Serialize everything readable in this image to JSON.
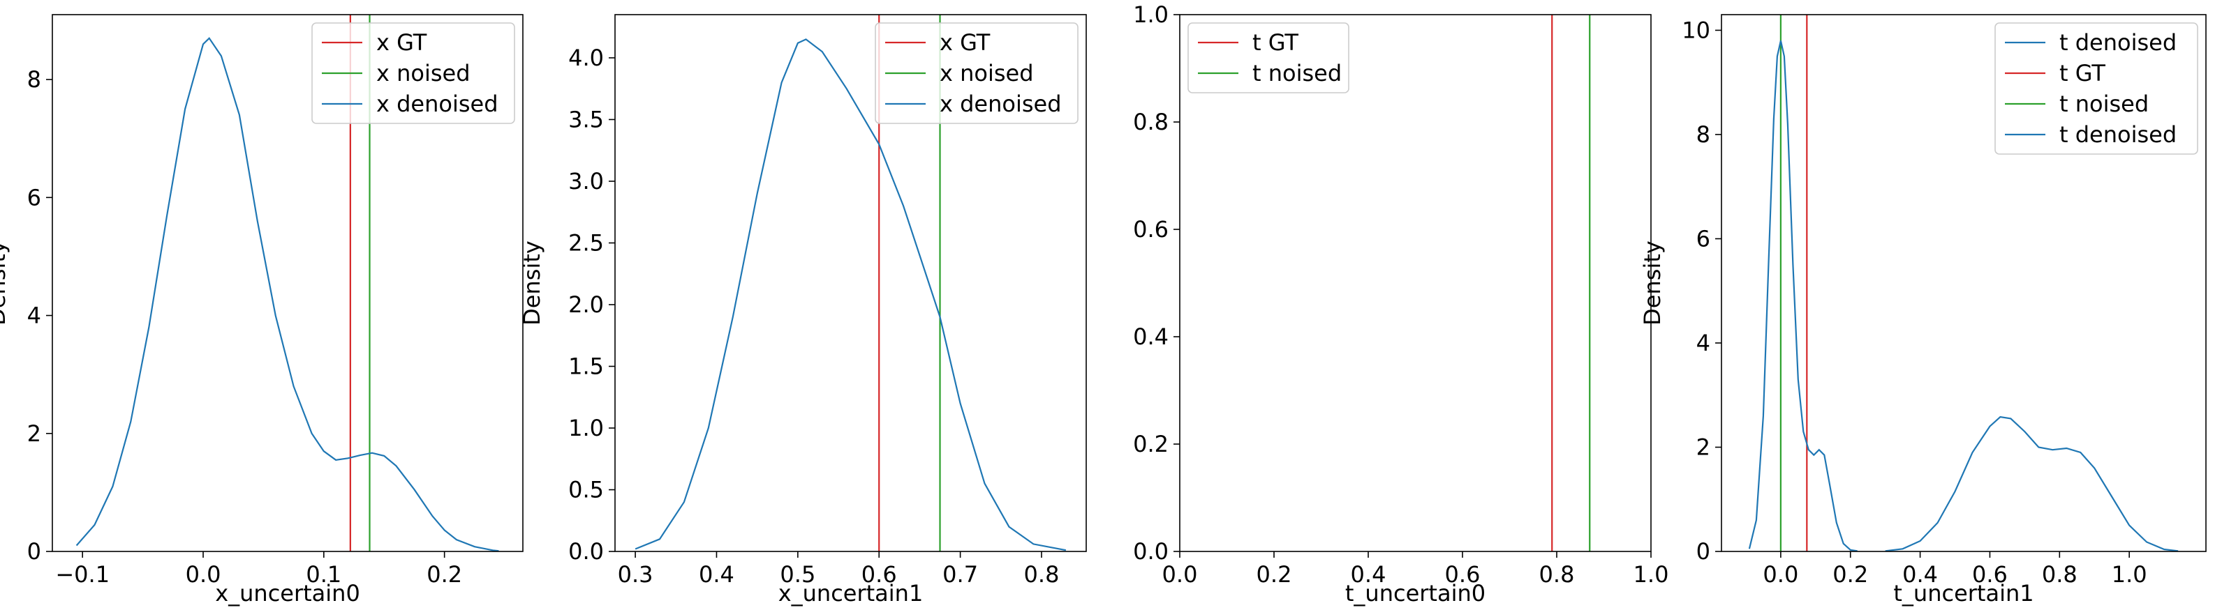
{
  "chart_data": [
    {
      "type": "line",
      "xlabel": "x_uncertain0",
      "ylabel": "Density",
      "xlim": [
        -0.125,
        0.265
      ],
      "ylim": [
        0,
        9.1
      ],
      "xticks": [
        -0.1,
        0.0,
        0.1,
        0.2
      ],
      "xtick_labels": [
        "−0.1",
        "0.0",
        "0.1",
        "0.2"
      ],
      "yticks": [
        0,
        2,
        4,
        6,
        8
      ],
      "ytick_labels": [
        "0",
        "2",
        "4",
        "6",
        "8"
      ],
      "legend_position": "upper right",
      "vlines": [
        {
          "name": "x GT",
          "x": 0.122,
          "color": "#d62728"
        },
        {
          "name": "x noised",
          "x": 0.138,
          "color": "#2ca02c"
        }
      ],
      "series": [
        {
          "name": "x denoised",
          "color": "#1f77b4",
          "x": [
            -0.105,
            -0.09,
            -0.075,
            -0.06,
            -0.045,
            -0.03,
            -0.015,
            0.0,
            0.005,
            0.015,
            0.03,
            0.045,
            0.06,
            0.075,
            0.09,
            0.1,
            0.11,
            0.12,
            0.13,
            0.14,
            0.15,
            0.16,
            0.175,
            0.19,
            0.2,
            0.21,
            0.225,
            0.24,
            0.245
          ],
          "y": [
            0.1,
            0.45,
            1.1,
            2.2,
            3.8,
            5.7,
            7.5,
            8.6,
            8.7,
            8.4,
            7.4,
            5.6,
            4.0,
            2.8,
            2.0,
            1.7,
            1.55,
            1.58,
            1.63,
            1.67,
            1.62,
            1.45,
            1.05,
            0.6,
            0.36,
            0.2,
            0.08,
            0.02,
            0.01
          ]
        }
      ],
      "legend": [
        "x GT",
        "x noised",
        "x denoised"
      ]
    },
    {
      "type": "line",
      "xlabel": "x_uncertain1",
      "ylabel": "Density",
      "xlim": [
        0.275,
        0.855
      ],
      "ylim": [
        0,
        4.35
      ],
      "xticks": [
        0.3,
        0.4,
        0.5,
        0.6,
        0.7,
        0.8
      ],
      "xtick_labels": [
        "0.3",
        "0.4",
        "0.5",
        "0.6",
        "0.7",
        "0.8"
      ],
      "yticks": [
        0.0,
        0.5,
        1.0,
        1.5,
        2.0,
        2.5,
        3.0,
        3.5,
        4.0
      ],
      "ytick_labels": [
        "0.0",
        "0.5",
        "1.0",
        "1.5",
        "2.0",
        "2.5",
        "3.0",
        "3.5",
        "4.0"
      ],
      "legend_position": "upper right",
      "vlines": [
        {
          "name": "x GT",
          "x": 0.6,
          "color": "#d62728"
        },
        {
          "name": "x noised",
          "x": 0.675,
          "color": "#2ca02c"
        }
      ],
      "series": [
        {
          "name": "x denoised",
          "color": "#1f77b4",
          "x": [
            0.3,
            0.33,
            0.36,
            0.39,
            0.42,
            0.45,
            0.48,
            0.5,
            0.51,
            0.53,
            0.56,
            0.6,
            0.63,
            0.66,
            0.675,
            0.7,
            0.73,
            0.76,
            0.79,
            0.83
          ],
          "y": [
            0.02,
            0.1,
            0.4,
            1.0,
            1.9,
            2.9,
            3.8,
            4.12,
            4.15,
            4.05,
            3.75,
            3.3,
            2.8,
            2.2,
            1.9,
            1.2,
            0.55,
            0.2,
            0.06,
            0.01
          ]
        }
      ],
      "legend": [
        "x GT",
        "x noised",
        "x denoised"
      ]
    },
    {
      "type": "line",
      "xlabel": "t_uncertain0",
      "ylabel": "",
      "xlim": [
        0.0,
        1.0
      ],
      "ylim": [
        0.0,
        1.0
      ],
      "xticks": [
        0.0,
        0.2,
        0.4,
        0.6,
        0.8,
        1.0
      ],
      "xtick_labels": [
        "0.0",
        "0.2",
        "0.4",
        "0.6",
        "0.8",
        "1.0"
      ],
      "yticks": [
        0.0,
        0.2,
        0.4,
        0.6,
        0.8,
        1.0
      ],
      "ytick_labels": [
        "0.0",
        "0.2",
        "0.4",
        "0.6",
        "0.8",
        "1.0"
      ],
      "legend_position": "upper left",
      "vlines": [
        {
          "name": "t GT",
          "x": 0.79,
          "color": "#d62728"
        },
        {
          "name": "t noised",
          "x": 0.87,
          "color": "#2ca02c"
        }
      ],
      "series": [],
      "legend": [
        "t GT",
        "t noised"
      ]
    },
    {
      "type": "line",
      "xlabel": "t_uncertain1",
      "ylabel": "Density",
      "xlim": [
        -0.17,
        1.22
      ],
      "ylim": [
        0,
        10.3
      ],
      "xticks": [
        0.0,
        0.2,
        0.4,
        0.6,
        0.8,
        1.0
      ],
      "xtick_labels": [
        "0.0",
        "0.2",
        "0.4",
        "0.6",
        "0.8",
        "1.0"
      ],
      "yticks": [
        0,
        2,
        4,
        6,
        8,
        10
      ],
      "ytick_labels": [
        "0",
        "2",
        "4",
        "6",
        "8",
        "10"
      ],
      "legend_position": "upper right",
      "vlines": [
        {
          "name": "t GT",
          "x": 0.075,
          "color": "#d62728"
        },
        {
          "name": "t noised",
          "x": 0.0,
          "color": "#2ca02c"
        }
      ],
      "series": [
        {
          "name": "t denoised",
          "color": "#1f77b4",
          "x": [
            -0.09,
            -0.07,
            -0.05,
            -0.035,
            -0.02,
            -0.01,
            0.0,
            0.01,
            0.02,
            0.035,
            0.05,
            0.065,
            0.08,
            0.095,
            0.11,
            0.125,
            0.14,
            0.16,
            0.18,
            0.2,
            0.22
          ],
          "y": [
            0.05,
            0.6,
            2.6,
            5.5,
            8.3,
            9.5,
            9.8,
            9.5,
            8.2,
            5.5,
            3.3,
            2.3,
            1.95,
            1.85,
            1.95,
            1.85,
            1.3,
            0.55,
            0.15,
            0.03,
            0.01
          ]
        },
        {
          "name": "t denoised",
          "color": "#1f77b4",
          "x": [
            0.3,
            0.35,
            0.4,
            0.45,
            0.5,
            0.55,
            0.6,
            0.63,
            0.66,
            0.7,
            0.74,
            0.78,
            0.82,
            0.86,
            0.9,
            0.95,
            1.0,
            1.05,
            1.1,
            1.14
          ],
          "y": [
            0.01,
            0.05,
            0.2,
            0.55,
            1.15,
            1.9,
            2.4,
            2.58,
            2.55,
            2.3,
            2.0,
            1.95,
            1.98,
            1.9,
            1.6,
            1.05,
            0.5,
            0.18,
            0.04,
            0.01
          ]
        }
      ],
      "legend": [
        "t denoised",
        "t GT",
        "t noised",
        "t denoised"
      ]
    }
  ]
}
